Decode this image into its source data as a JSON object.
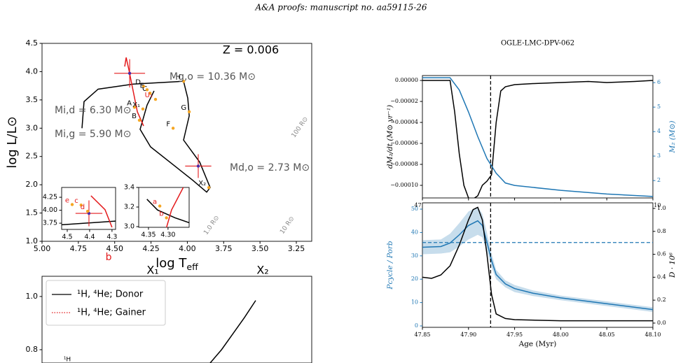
{
  "header": "A&A proofs: manuscript no. aa59115-26",
  "chart_data": [
    {
      "type": "line",
      "ylabel": "log L/L⊙",
      "xlabel": "log T",
      "xlabel_sub": "eff",
      "xlim": [
        5.0,
        3.144
      ],
      "ylim": [
        1.0,
        4.5
      ],
      "xticks": [
        {
          "value": 5,
          "label": "5.00"
        },
        4.75,
        {
          "value": 4.5,
          "label": "4.50"
        },
        4.25,
        {
          "value": 4,
          "label": "4.00"
        },
        3.75,
        {
          "value": 3.5,
          "label": "3.50"
        },
        3.25
      ],
      "yticks": [
        {
          "value": 1,
          "label": "1.0"
        },
        1.5,
        {
          "value": 2,
          "label": "2.0"
        },
        2.5,
        {
          "value": 3,
          "label": "3.0"
        },
        3.5,
        {
          "value": 4,
          "label": "4.0"
        },
        4.5
      ],
      "series": [
        {
          "color": "#000000",
          "x": [
            4.725,
            4.711,
            4.614,
            4.373,
            4.026,
            3.997,
            3.987,
            4.026,
            3.915,
            3.843,
            3.867,
            3.963,
            4.253,
            4.325,
            4.277,
            4.229
          ],
          "values": [
            3.0,
            3.47,
            3.69,
            3.78,
            3.83,
            3.53,
            3.22,
            2.79,
            2.4,
            1.95,
            1.87,
            2.08,
            2.67,
            2.98,
            3.41,
            3.66
          ]
        },
        {
          "color": "#e41a1c",
          "x": [
            4.431,
            4.421,
            4.402,
            4.344,
            4.301
          ],
          "values": [
            4.09,
            4.25,
            4.03,
            3.29,
            3.04
          ]
        }
      ],
      "points": [
        {
          "label": "A",
          "x": 4.364,
          "y": 3.37,
          "color": "#f5a623",
          "text_color": "#000000"
        },
        {
          "label": "B",
          "x": 4.33,
          "y": 3.14,
          "color": "#f5a623",
          "text_color": "#000000"
        },
        {
          "label": "C",
          "x": 4.257,
          "y": 3.62,
          "color": "#f5a623",
          "text_color": "#000000"
        },
        {
          "label": "D",
          "x": 4.301,
          "y": 3.74,
          "color": "#f5a623",
          "text_color": "#000000"
        },
        {
          "label": "E",
          "x": 4.277,
          "y": 3.68,
          "color": "#f5a623",
          "text_color": "#000000"
        },
        {
          "label": "F",
          "x": 4.098,
          "y": 3.0,
          "color": "#f5a623",
          "text_color": "#000000"
        },
        {
          "label": "G",
          "x": 3.987,
          "y": 3.29,
          "color": "#f5a623",
          "text_color": "#000000"
        },
        {
          "label": "H",
          "x": 4.026,
          "y": 3.83,
          "color": "#f5a623",
          "text_color": "#000000"
        },
        {
          "label": "X₁",
          "x": 4.306,
          "y": 3.34,
          "color": "#f5a623",
          "text_color": "#000000"
        },
        {
          "label": "X₂",
          "x": 3.852,
          "y": 1.95,
          "color": "#f5a623",
          "text_color": "#000000"
        },
        {
          "label": "U₁",
          "x": 4.219,
          "y": 3.51,
          "color": "#f5a623",
          "text_color": "#e41a1c"
        }
      ],
      "errorbars": [
        {
          "x": 4.397,
          "y": 3.97,
          "xerr": 0.106,
          "yerr": 0.25
        },
        {
          "x": 3.925,
          "y": 2.33,
          "xerr": 0.09,
          "yerr": 0.21
        }
      ],
      "annotations": [
        {
          "text": "Z = 0.006",
          "color": "#000000"
        },
        {
          "text": "Mg,o = 10.36 M⊙",
          "color": "#555555"
        },
        {
          "text": "Mi,d = 6.30 M⊙",
          "color": "#555555"
        },
        {
          "text": "Mi,g = 5.90 M⊙",
          "color": "#555555"
        },
        {
          "text": "Md,o = 2.73 M⊙",
          "color": "#555555"
        },
        {
          "text": "100 R⊙",
          "color": "#888888"
        },
        {
          "text": "10 R⊙",
          "color": "#888888"
        },
        {
          "text": "1.0 R⊙",
          "color": "#888888"
        },
        {
          "text": "b",
          "color": "#e41a1c"
        }
      ]
    },
    {
      "type": "line",
      "xlim": [
        4.525,
        4.284
      ],
      "ylim": [
        3.63,
        4.44
      ],
      "xticks": [
        4.5,
        4.4,
        4.3
      ],
      "yticks": [
        3.75,
        {
          "value": 4,
          "label": "4.00"
        },
        4.25
      ],
      "series": [
        {
          "color": "#000000",
          "x": [
            4.525,
            4.284
          ],
          "values": [
            3.72,
            3.79
          ]
        },
        {
          "color": "#e41a1c",
          "x": [
            4.394,
            4.331,
            4.3
          ],
          "values": [
            4.28,
            4.01,
            3.67
          ]
        }
      ],
      "points": [
        {
          "label": "e",
          "x": 4.478,
          "y": 4.11,
          "color": "#f5a623",
          "text_color": "#e41a1c"
        },
        {
          "label": "c",
          "x": 4.438,
          "y": 4.1,
          "color": "#f5a623",
          "text_color": "#e41a1c"
        },
        {
          "label": "d",
          "x": 4.409,
          "y": 3.98,
          "color": "#f5a623",
          "text_color": "#e41a1c"
        }
      ],
      "errorbars": [
        {
          "x": 4.403,
          "y": 3.94,
          "xerr": 0.06,
          "yerr": 0.25
        }
      ]
    },
    {
      "type": "line",
      "xlim": [
        4.375,
        4.246
      ],
      "ylim": [
        2.993,
        3.4
      ],
      "xticks": [
        4.35,
        {
          "value": 4.3,
          "label": "4.30"
        }
      ],
      "yticks": [
        {
          "value": 3,
          "label": "3.0"
        },
        3.2,
        3.4
      ],
      "series": [
        {
          "color": "#000000",
          "x": [
            4.354,
            4.327,
            4.282,
            4.246
          ],
          "values": [
            3.28,
            3.17,
            3.09,
            3.04
          ]
        },
        {
          "color": "#e41a1c",
          "x": [
            4.261,
            4.291,
            4.304
          ],
          "values": [
            3.4,
            3.17,
            2.99
          ]
        }
      ],
      "points": [
        {
          "label": "a",
          "x": 4.321,
          "y": 3.21,
          "color": "#f5a623",
          "text_color": "#e41a1c"
        },
        {
          "label": "b",
          "x": 4.304,
          "y": 3.09,
          "color": "#f5a623",
          "text_color": "#e41a1c"
        }
      ]
    },
    {
      "type": "line",
      "ylim": [
        0.75,
        1.076
      ],
      "yticks": [
        0.8,
        {
          "value": 1,
          "label": "1.0"
        }
      ],
      "legend": "upper left",
      "series": [
        {
          "name": "¹H, ⁴He; Donor",
          "color": "#000000",
          "style": "solid",
          "values": [
            0.75,
            0.8,
            0.86,
            0.92,
            0.985
          ]
        },
        {
          "name": "¹H, ⁴He; Gainer",
          "color": "#e41a1c",
          "style": "dotted",
          "values": []
        }
      ],
      "annotations": [
        {
          "text": "X₁",
          "color": "#000000"
        },
        {
          "text": "X₂",
          "color": "#000000"
        },
        {
          "text": "¹H",
          "color": "#000000"
        }
      ]
    },
    {
      "type": "line",
      "title": "OGLE-LMC-DPV-062",
      "ylabel": "dM₂/dt  (M⊙ yr⁻¹)",
      "y2label": "M₂ (M⊙)",
      "y2color": "#1f77b4",
      "xlim": [
        47.85,
        48.1
      ],
      "ylim": [
        -0.000112,
        4.7e-06
      ],
      "y2lim": [
        1.29,
        6.29
      ],
      "xticks": [
        47.85,
        {
          "value": 47.9,
          "label": "47.90"
        },
        47.95,
        {
          "value": 48,
          "label": "48.00"
        },
        48.05,
        {
          "value": 48.1,
          "label": "48.10"
        }
      ],
      "yticks": [
        {
          "value": 0,
          "label": "0.00000"
        },
        {
          "value": -2e-05,
          "label": "−0.00002"
        },
        {
          "value": -4e-05,
          "label": "−0.00004"
        },
        {
          "value": -6e-05,
          "label": "−0.00006"
        },
        {
          "value": -8e-05,
          "label": "−0.00008"
        },
        {
          "value": -0.0001,
          "label": "−0.00010"
        }
      ],
      "y2ticks": [
        2,
        3,
        4,
        5,
        6
      ],
      "series": [
        {
          "color": "#000000",
          "x": [
            47.85,
            47.87,
            47.88,
            47.885,
            47.89,
            47.895,
            47.9,
            47.905,
            47.91,
            47.915,
            47.92,
            47.925,
            47.93,
            47.935,
            47.94,
            47.95,
            47.97,
            48.0,
            48.03,
            48.05,
            48.08,
            48.1
          ],
          "values": [
            0,
            0,
            0,
            -3e-05,
            -7e-05,
            -0.0001,
            -0.000112,
            -0.000113,
            -0.00011,
            -0.0001,
            -9.6e-05,
            -9e-05,
            -4e-05,
            -1e-05,
            -6e-06,
            -4e-06,
            -3e-06,
            -2e-06,
            -1e-06,
            -2e-06,
            -1e-06,
            0
          ]
        },
        {
          "color": "#1f77b4",
          "axis": "y2",
          "x": [
            47.85,
            47.88,
            47.89,
            47.9,
            47.91,
            47.92,
            47.925,
            47.93,
            47.94,
            47.95,
            48.0,
            48.05,
            48.1
          ],
          "values": [
            6.2,
            6.2,
            5.7,
            4.8,
            3.8,
            2.9,
            2.6,
            2.3,
            1.9,
            1.8,
            1.6,
            1.45,
            1.35
          ]
        }
      ],
      "vlines": [
        {
          "value": 47.924,
          "color": "#000000"
        }
      ]
    },
    {
      "type": "line",
      "ylabel": "Pcycle / Porb",
      "y2label": "D · 10⁶",
      "xlabel": "Age (Myr)",
      "ycolor": "#1f77b4",
      "xlim": [
        47.85,
        48.1
      ],
      "ylim": [
        -0.6,
        52.7
      ],
      "y2lim": [
        -0.037,
        1.049
      ],
      "xticks": [
        47.85,
        {
          "value": 47.9,
          "label": "47.90"
        },
        47.95,
        {
          "value": 48,
          "label": "48.00"
        },
        48.05,
        {
          "value": 48.1,
          "label": "48.10"
        }
      ],
      "yticks": [
        0,
        10,
        20,
        30,
        40,
        50
      ],
      "y2ticks": [
        {
          "value": 0,
          "label": "0.0"
        },
        0.2,
        0.4,
        0.6,
        0.8,
        {
          "value": 1,
          "label": "1.0"
        }
      ],
      "series": [
        {
          "color": "#1f77b4",
          "x": [
            47.85,
            47.87,
            47.88,
            47.89,
            47.9,
            47.91,
            47.915,
            47.92,
            47.925,
            47.93,
            47.94,
            47.95,
            47.97,
            48.0,
            48.05,
            48.1
          ],
          "values": [
            33.7,
            34,
            35.5,
            39,
            43,
            45,
            43,
            36,
            28,
            22,
            18,
            16,
            14,
            12,
            9.5,
            7
          ],
          "band_low": [
            30.7,
            31,
            31.5,
            34,
            37,
            39,
            38,
            32,
            25,
            20,
            16.5,
            14.5,
            12.8,
            11,
            8.5,
            6
          ],
          "band_high": [
            36.7,
            37,
            39.5,
            44,
            49,
            51,
            48,
            40,
            31,
            24,
            19.5,
            17.5,
            15.2,
            13,
            10.5,
            8
          ]
        },
        {
          "color": "#000000",
          "axis": "y2",
          "x": [
            47.85,
            47.86,
            47.87,
            47.88,
            47.89,
            47.9,
            47.905,
            47.91,
            47.915,
            47.92,
            47.925,
            47.93,
            47.94,
            47.95,
            48.0,
            48.1
          ],
          "values": [
            0.4,
            0.39,
            0.42,
            0.5,
            0.68,
            0.9,
            0.99,
            1.01,
            0.9,
            0.6,
            0.25,
            0.08,
            0.04,
            0.03,
            0.02,
            0.02
          ]
        }
      ],
      "vlines": [
        {
          "value": 47.924,
          "color": "#000000"
        }
      ],
      "hlines": [
        {
          "value": 35.7,
          "color": "#1f77b4"
        }
      ]
    }
  ]
}
